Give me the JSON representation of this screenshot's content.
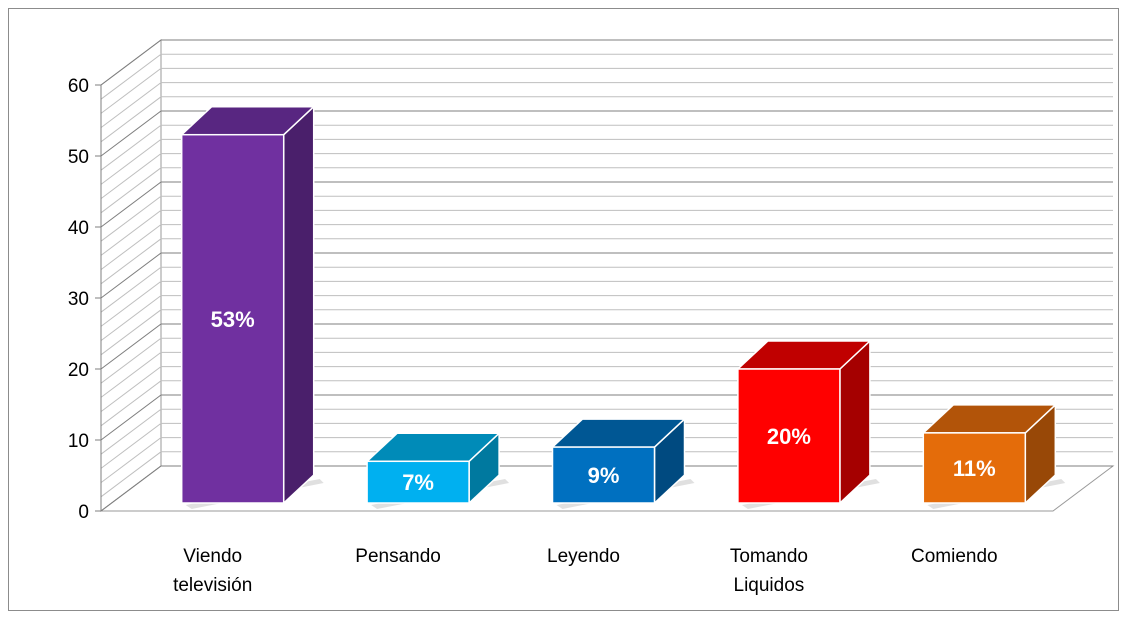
{
  "chart_data": {
    "type": "bar",
    "style": "3d-column",
    "categories": [
      [
        "Viendo",
        "televisión"
      ],
      [
        "Pensando"
      ],
      [
        "Leyendo"
      ],
      [
        "Tomando",
        "Liquidos"
      ],
      [
        "Comiendo"
      ]
    ],
    "values": [
      53,
      7,
      9,
      20,
      11
    ],
    "data_labels": [
      "53%",
      "7%",
      "9%",
      "20%",
      "11%"
    ],
    "title": "",
    "xlabel": "",
    "ylabel": "",
    "ylim": [
      0,
      60
    ],
    "yticks": [
      0,
      10,
      20,
      30,
      40,
      50,
      60
    ],
    "grid": true,
    "legend": "none",
    "colors": {
      "front": [
        "#7030a0",
        "#00b0f0",
        "#0070c0",
        "#ff0000",
        "#e46c0a"
      ],
      "side": [
        "#4a1f6b",
        "#00799f",
        "#004a80",
        "#a50000",
        "#984807"
      ],
      "top": [
        "#582681",
        "#008bb8",
        "#005794",
        "#c00000",
        "#b25409"
      ]
    }
  }
}
